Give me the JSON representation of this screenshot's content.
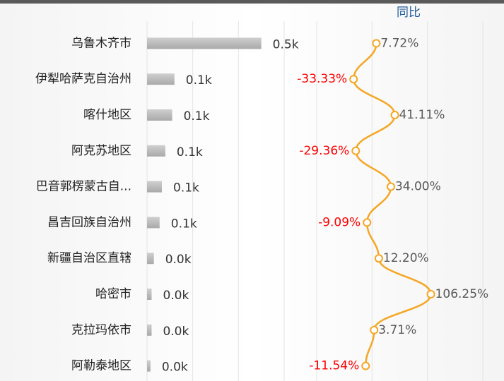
{
  "chart_data": [
    {
      "type": "barh",
      "categories": [
        "乌鲁木齐市",
        "伊犁哈萨克自治州",
        "喀什地区",
        "阿克苏地区",
        "巴音郭楞蒙古自...",
        "昌吉回族自治州",
        "新疆自治区直辖",
        "哈密市",
        "克拉玛依市",
        "阿勒泰地区"
      ],
      "values": [
        0.5,
        0.12,
        0.11,
        0.08,
        0.065,
        0.055,
        0.03,
        0.02,
        0.02,
        0.015
      ],
      "value_labels": [
        "0.5k",
        "0.1k",
        "0.1k",
        "0.1k",
        "0.1k",
        "0.1k",
        "0.0k",
        "0.0k",
        "0.0k",
        "0.0k"
      ],
      "color": "#bdbdbd",
      "xlim": [
        0,
        0.6
      ],
      "xticks": [
        0,
        0.2,
        0.4,
        0.6
      ],
      "grid": true
    },
    {
      "type": "line",
      "title": "同比",
      "values": [
        7.72,
        -33.33,
        41.11,
        -29.36,
        34.0,
        -9.09,
        12.2,
        106.25,
        3.71,
        -11.54
      ],
      "value_labels": [
        "7.72%",
        "-33.33%",
        "41.11%",
        "-29.36%",
        "34.00%",
        "-9.09%",
        "12.20%",
        "106.25%",
        "3.71%",
        "-11.54%"
      ],
      "color": "#f5a623",
      "negative_color": "#ff0000",
      "label_color": "#595959",
      "xlim": [
        -100,
        200
      ],
      "xticks": [
        -100,
        0,
        100,
        200
      ],
      "grid": true
    }
  ]
}
